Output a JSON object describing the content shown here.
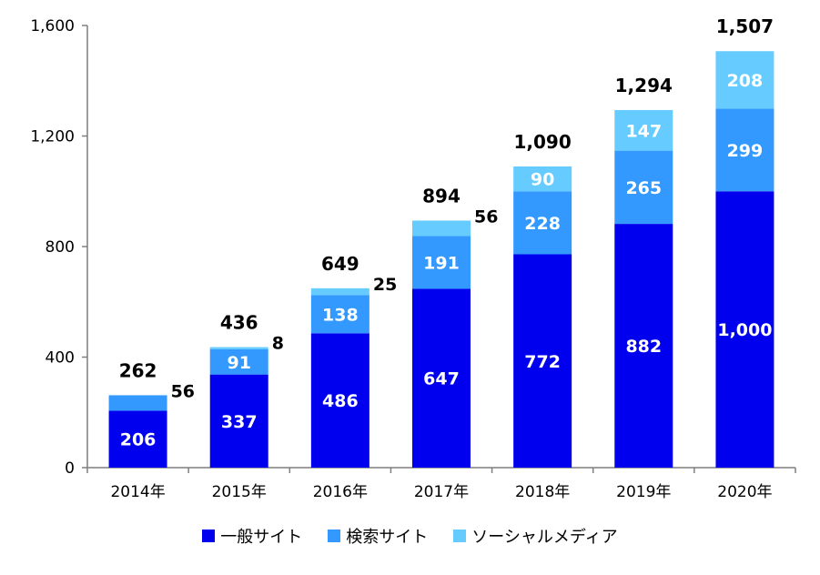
{
  "chart_data": {
    "type": "bar",
    "stacked": true,
    "categories": [
      "2014年",
      "2015年",
      "2016年",
      "2017年",
      "2018年",
      "2019年",
      "2020年"
    ],
    "series": [
      {
        "name": "一般サイト",
        "color": "#0000ee",
        "values": [
          206,
          337,
          486,
          647,
          772,
          882,
          1000
        ],
        "labels": [
          "206",
          "337",
          "486",
          "647",
          "772",
          "882",
          "1,000"
        ]
      },
      {
        "name": "検索サイト",
        "color": "#3399ff",
        "values": [
          56,
          91,
          138,
          191,
          228,
          265,
          299
        ],
        "labels": [
          "56",
          "91",
          "138",
          "191",
          "228",
          "265",
          "299"
        ]
      },
      {
        "name": "ソーシャルメディア",
        "color": "#66ccff",
        "values": [
          0,
          8,
          25,
          56,
          90,
          147,
          208
        ],
        "labels": [
          "",
          "8",
          "25",
          "56",
          "90",
          "147",
          "208"
        ]
      }
    ],
    "totals": [
      "262",
      "436",
      "649",
      "894",
      "1,090",
      "1,294",
      "1,507"
    ],
    "ylim": [
      0,
      1600
    ],
    "yticks": [
      0,
      400,
      800,
      1200,
      1600
    ],
    "ytick_labels": [
      "0",
      "400",
      "800",
      "1,200",
      "1,600"
    ],
    "legend_position": "bottom",
    "grid": false
  }
}
